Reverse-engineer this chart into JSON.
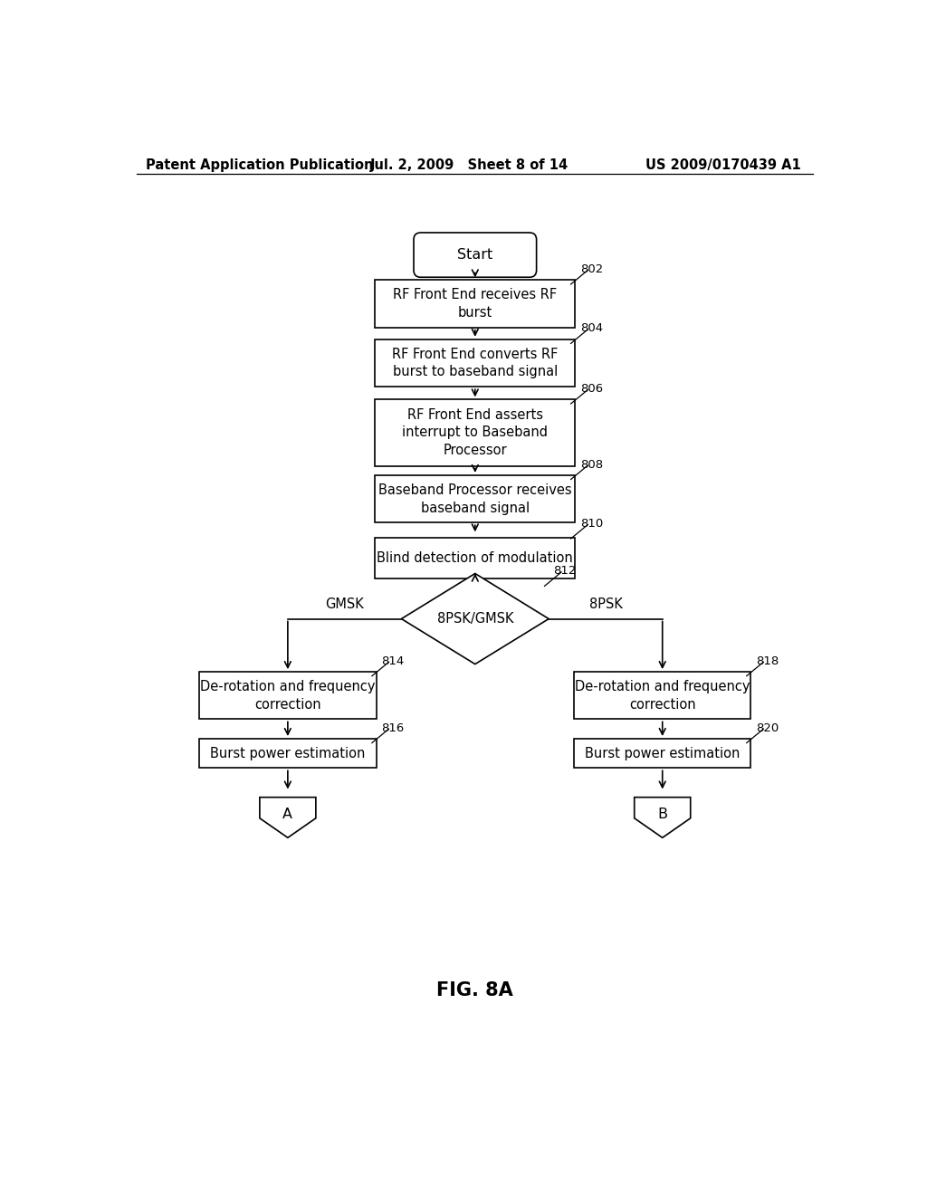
{
  "header_left": "Patent Application Publication",
  "header_mid": "Jul. 2, 2009   Sheet 8 of 14",
  "header_right": "US 2009/0170439 A1",
  "figure_label": "FIG. 8A",
  "start_label": "Start",
  "box_802": "RF Front End receives RF\nburst",
  "box_804": "RF Front End converts RF\nburst to baseband signal",
  "box_806": "RF Front End asserts\ninterrupt to Baseband\nProcessor",
  "box_808": "Baseband Processor receives\nbaseband signal",
  "box_810": "Blind detection of modulation",
  "diamond_812": "8PSK/GMSK",
  "box_814": "De-rotation and frequency\ncorrection",
  "box_816": "Burst power estimation",
  "box_818": "De-rotation and frequency\ncorrection",
  "box_820": "Burst power estimation",
  "label_gmsk": "GMSK",
  "label_8psk": "8PSK",
  "connector_a": "A",
  "connector_b": "B",
  "ref_802": "802",
  "ref_804": "804",
  "ref_806": "806",
  "ref_808": "808",
  "ref_810": "810",
  "ref_812": "812",
  "ref_814": "814",
  "ref_816": "816",
  "ref_818": "818",
  "ref_820": "820",
  "bg_color": "#ffffff",
  "box_color": "#ffffff",
  "line_color": "#000000",
  "text_color": "#000000",
  "font_size": 10.5,
  "ref_font_size": 9.5,
  "header_font_size": 10.5,
  "fig_label_font_size": 15,
  "lw": 1.2
}
